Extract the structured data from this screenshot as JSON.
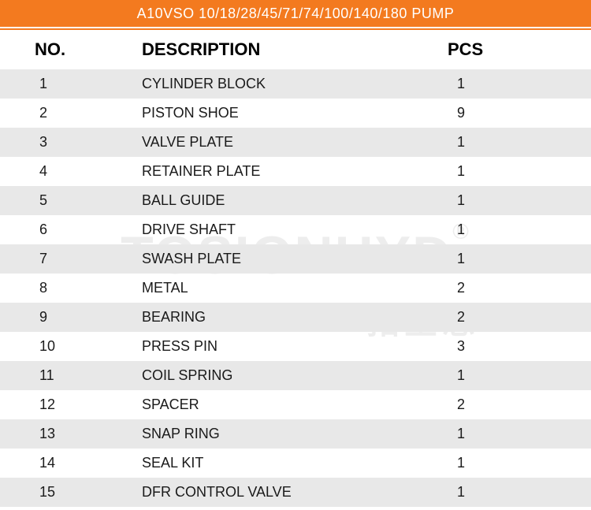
{
  "title": "A10VSO 10/18/28/45/71/74/100/140/180  PUMP",
  "watermark_main": "TOSIONHYD",
  "watermark_reg": "®",
  "watermark_sub": "拓圣思",
  "colors": {
    "header_bg": "#f37a1f",
    "header_text": "#ffffff",
    "row_stripe": "#e8e8e8",
    "row_plain": "#ffffff",
    "text": "#1a1a1a",
    "watermark": "rgba(0,0,0,0.07)"
  },
  "table": {
    "header": {
      "no": "NO.",
      "desc": "DESCRIPTION",
      "pcs": "PCS"
    },
    "rows": [
      {
        "no": "1",
        "desc": "CYLINDER BLOCK",
        "pcs": "1"
      },
      {
        "no": "2",
        "desc": "PISTON SHOE",
        "pcs": "9"
      },
      {
        "no": "3",
        "desc": "VALVE PLATE",
        "pcs": "1"
      },
      {
        "no": "4",
        "desc": "RETAINER PLATE",
        "pcs": "1"
      },
      {
        "no": "5",
        "desc": "BALL GUIDE",
        "pcs": "1"
      },
      {
        "no": "6",
        "desc": "DRIVE SHAFT",
        "pcs": "1"
      },
      {
        "no": "7",
        "desc": "SWASH PLATE",
        "pcs": "1"
      },
      {
        "no": "8",
        "desc": "METAL",
        "pcs": "2"
      },
      {
        "no": "9",
        "desc": "BEARING",
        "pcs": "2"
      },
      {
        "no": "10",
        "desc": "PRESS PIN",
        "pcs": "3"
      },
      {
        "no": "11",
        "desc": "COIL SPRING",
        "pcs": "1"
      },
      {
        "no": "12",
        "desc": "SPACER",
        "pcs": "2"
      },
      {
        "no": "13",
        "desc": "SNAP RING",
        "pcs": "1"
      },
      {
        "no": "14",
        "desc": "SEAL KIT",
        "pcs": "1"
      },
      {
        "no": "15",
        "desc": "DFR CONTROL VALVE",
        "pcs": "1"
      }
    ]
  }
}
